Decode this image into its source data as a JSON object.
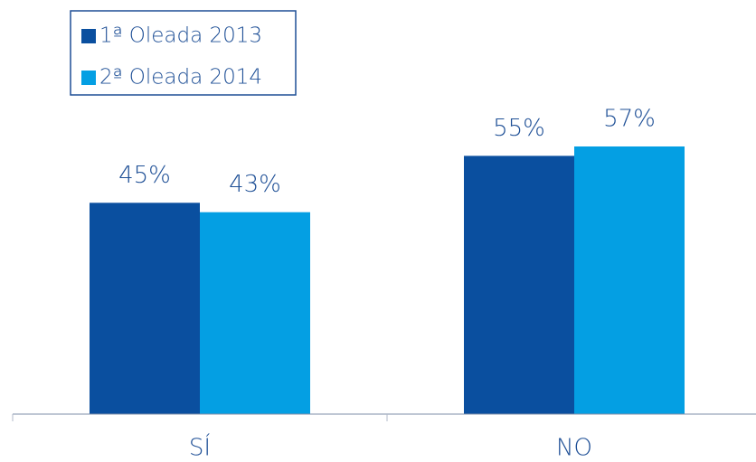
{
  "chart_data": {
    "type": "bar",
    "categories": [
      "SÍ",
      "NO"
    ],
    "series": [
      {
        "name": "1ª Oleada 2013",
        "color": "#0a4f9f",
        "values": [
          45,
          55
        ],
        "value_labels": [
          "45%",
          "55%"
        ]
      },
      {
        "name": "2ª Oleada 2014",
        "color": "#049fe3",
        "values": [
          43,
          57
        ],
        "value_labels": [
          "43%",
          "57%"
        ]
      }
    ],
    "legend": "top-left"
  }
}
